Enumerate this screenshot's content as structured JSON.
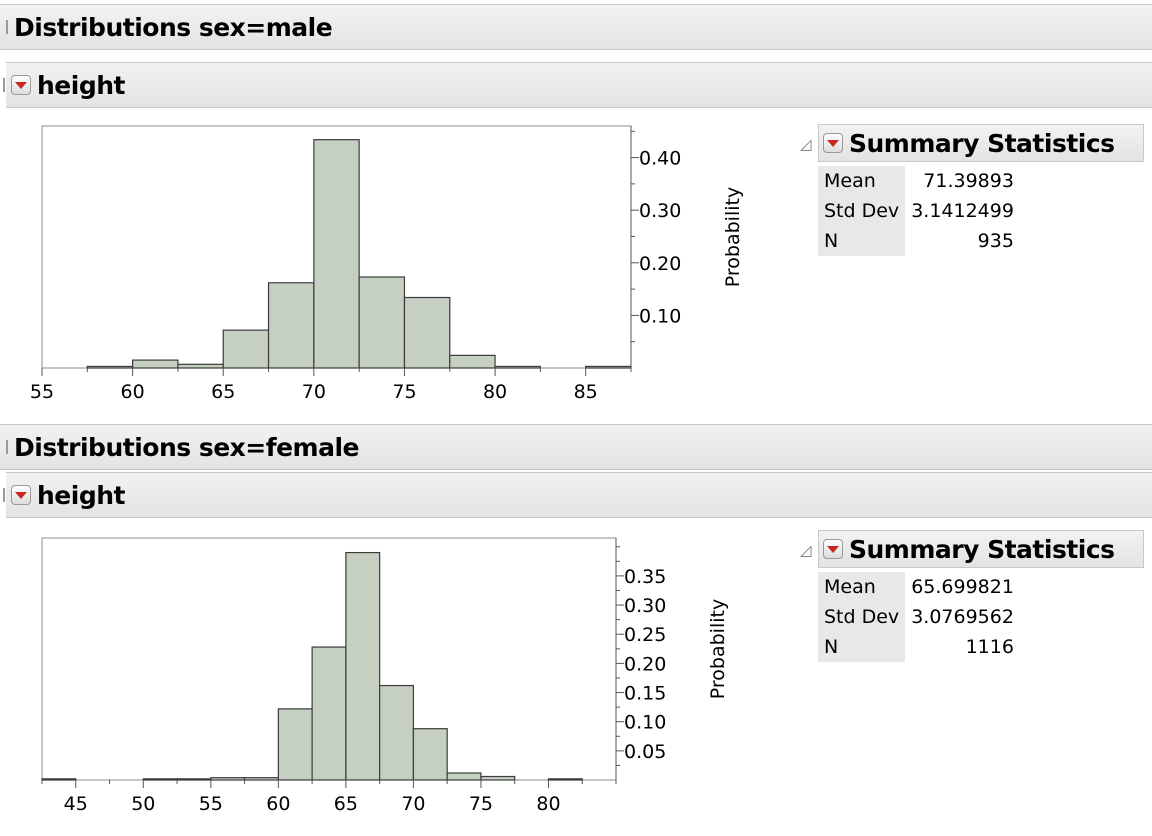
{
  "panels": [
    {
      "title": "Distributions sex=male",
      "variable": "height",
      "summary_title": "Summary Statistics",
      "stats": [
        {
          "label": "Mean",
          "value": "71.39893"
        },
        {
          "label": "Std Dev",
          "value": "3.1412499"
        },
        {
          "label": "N",
          "value": "935"
        }
      ]
    },
    {
      "title": "Distributions sex=female",
      "variable": "height",
      "summary_title": "Summary Statistics",
      "stats": [
        {
          "label": "Mean",
          "value": "65.699821"
        },
        {
          "label": "Std Dev",
          "value": "3.0769562"
        },
        {
          "label": "N",
          "value": "1116"
        }
      ]
    }
  ],
  "chart_data": [
    {
      "type": "bar",
      "ylabel": "Probability",
      "xlim": [
        55,
        87.5
      ],
      "ylim": [
        0,
        0.46
      ],
      "x_ticks": [
        55,
        60,
        65,
        70,
        75,
        80,
        85
      ],
      "y_ticks": [
        0.1,
        0.2,
        0.3,
        0.4
      ],
      "y_tick_labels": [
        "0.10",
        "0.20",
        "0.30",
        "0.40"
      ],
      "bin_edges": [
        57.5,
        60,
        62.5,
        65,
        67.5,
        70,
        72.5,
        75,
        77.5,
        80,
        82.5,
        85,
        87.5
      ],
      "values": [
        0.003,
        0.015,
        0.007,
        0.072,
        0.162,
        0.434,
        0.173,
        0.134,
        0.024,
        0.003,
        0.0,
        0.003
      ],
      "bar_color": "#c5cfc2"
    },
    {
      "type": "bar",
      "ylabel": "Probability",
      "xlim": [
        42.5,
        85
      ],
      "ylim": [
        0,
        0.415
      ],
      "x_ticks": [
        45,
        50,
        55,
        60,
        65,
        70,
        75,
        80
      ],
      "y_ticks": [
        0.05,
        0.1,
        0.15,
        0.2,
        0.25,
        0.3,
        0.35
      ],
      "y_tick_labels": [
        "0.05",
        "0.10",
        "0.15",
        "0.20",
        "0.25",
        "0.30",
        "0.35"
      ],
      "bin_edges": [
        42.5,
        45,
        47.5,
        50,
        52.5,
        55,
        57.5,
        60,
        62.5,
        65,
        67.5,
        70,
        72.5,
        75,
        77.5,
        80,
        82.5
      ],
      "values": [
        0.002,
        0.0,
        0.0,
        0.002,
        0.002,
        0.004,
        0.004,
        0.122,
        0.228,
        0.39,
        0.162,
        0.088,
        0.012,
        0.006,
        0.0,
        0.002
      ],
      "bar_color": "#c5cfc2"
    }
  ]
}
